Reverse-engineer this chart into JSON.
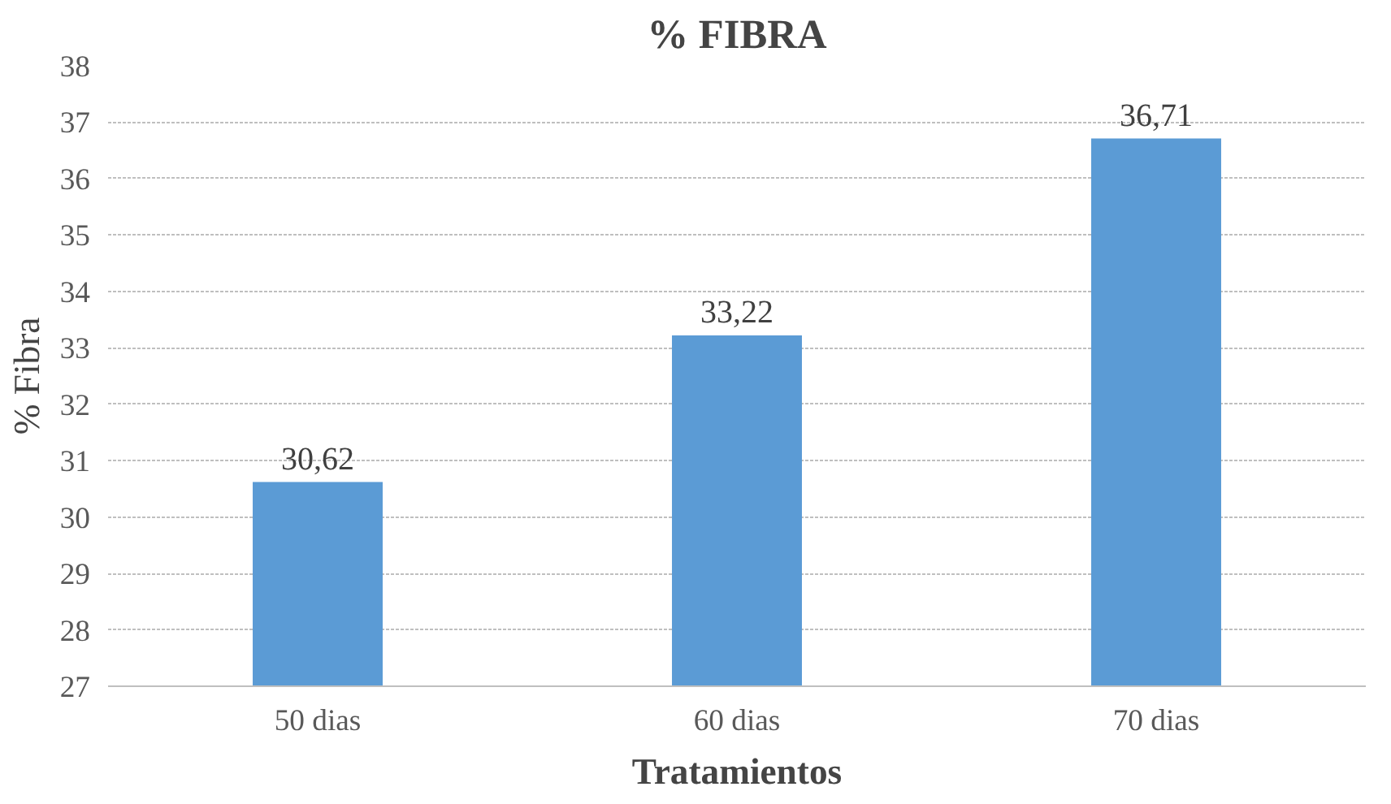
{
  "chart_data": {
    "type": "bar",
    "title": "% FIBRA",
    "xlabel": "Tratamientos",
    "ylabel": "% Fibra",
    "categories": [
      "50 dias",
      "60 dias",
      "70 dias"
    ],
    "values": [
      30.62,
      33.22,
      36.71
    ],
    "value_labels": [
      "30,62",
      "33,22",
      "36,71"
    ],
    "color": "#5b9bd5",
    "ylim": [
      27,
      38
    ],
    "yticks": [
      27,
      28,
      29,
      30,
      31,
      32,
      33,
      34,
      35,
      36,
      37,
      38
    ],
    "grid": "y"
  }
}
